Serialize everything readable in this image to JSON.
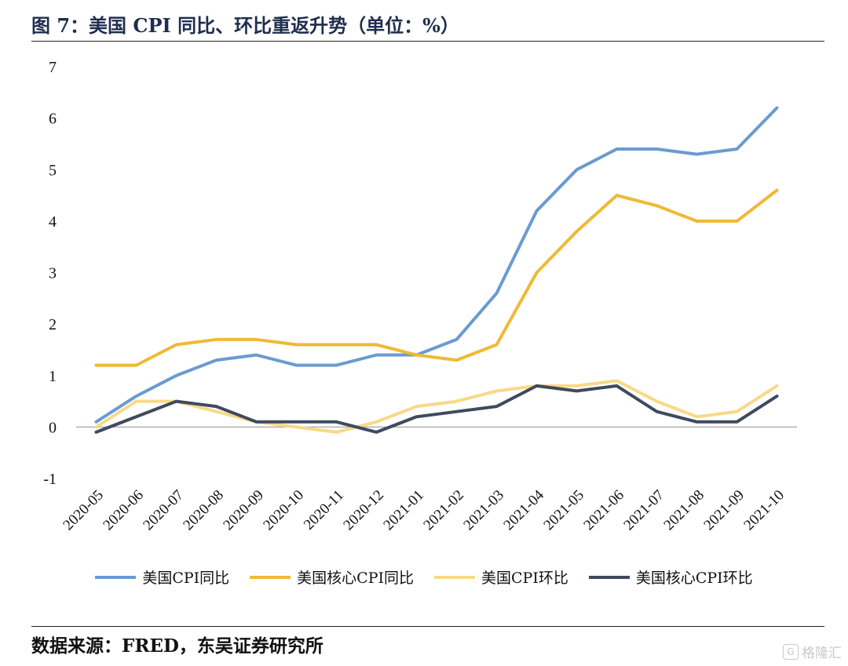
{
  "header": {
    "title": "图 7：美国 CPI 同比、环比重返升势（单位：%）"
  },
  "footer": {
    "source": "数据来源：FRED，东吴证券研究所",
    "watermark": "格隆汇"
  },
  "chart_data": {
    "type": "line",
    "title": "",
    "xlabel": "",
    "ylabel": "",
    "ylim": [
      -1,
      7
    ],
    "yticks": [
      "-1",
      "0",
      "1",
      "2",
      "3",
      "4",
      "5",
      "6",
      "7"
    ],
    "grid": false,
    "legend_position": "bottom",
    "categories": [
      "2020-05",
      "2020-06",
      "2020-07",
      "2020-08",
      "2020-09",
      "2020-10",
      "2020-11",
      "2020-12",
      "2021-01",
      "2021-02",
      "2021-03",
      "2021-04",
      "2021-05",
      "2021-06",
      "2021-07",
      "2021-08",
      "2021-09",
      "2021-10"
    ],
    "series": [
      {
        "name": "美国CPI同比",
        "color": "#6a9bd1",
        "values": [
          0.1,
          0.6,
          1.0,
          1.3,
          1.4,
          1.2,
          1.2,
          1.4,
          1.4,
          1.7,
          2.6,
          4.2,
          5.0,
          5.4,
          5.4,
          5.3,
          5.4,
          6.2
        ]
      },
      {
        "name": "美国核心CPI同比",
        "color": "#f0b935",
        "values": [
          1.2,
          1.2,
          1.6,
          1.7,
          1.7,
          1.6,
          1.6,
          1.6,
          1.4,
          1.3,
          1.6,
          3.0,
          3.8,
          4.5,
          4.3,
          4.0,
          4.0,
          4.6
        ]
      },
      {
        "name": "美国CPI环比",
        "color": "#f8d987",
        "values": [
          0.0,
          0.5,
          0.5,
          0.3,
          0.1,
          0.0,
          -0.1,
          0.1,
          0.4,
          0.5,
          0.7,
          0.8,
          0.8,
          0.9,
          0.5,
          0.2,
          0.3,
          0.8
        ]
      },
      {
        "name": "美国核心CPI环比",
        "color": "#3f4a5e",
        "values": [
          -0.1,
          0.2,
          0.5,
          0.4,
          0.1,
          0.1,
          0.1,
          -0.1,
          0.2,
          0.3,
          0.4,
          0.8,
          0.7,
          0.8,
          0.3,
          0.1,
          0.1,
          0.6
        ]
      }
    ]
  }
}
